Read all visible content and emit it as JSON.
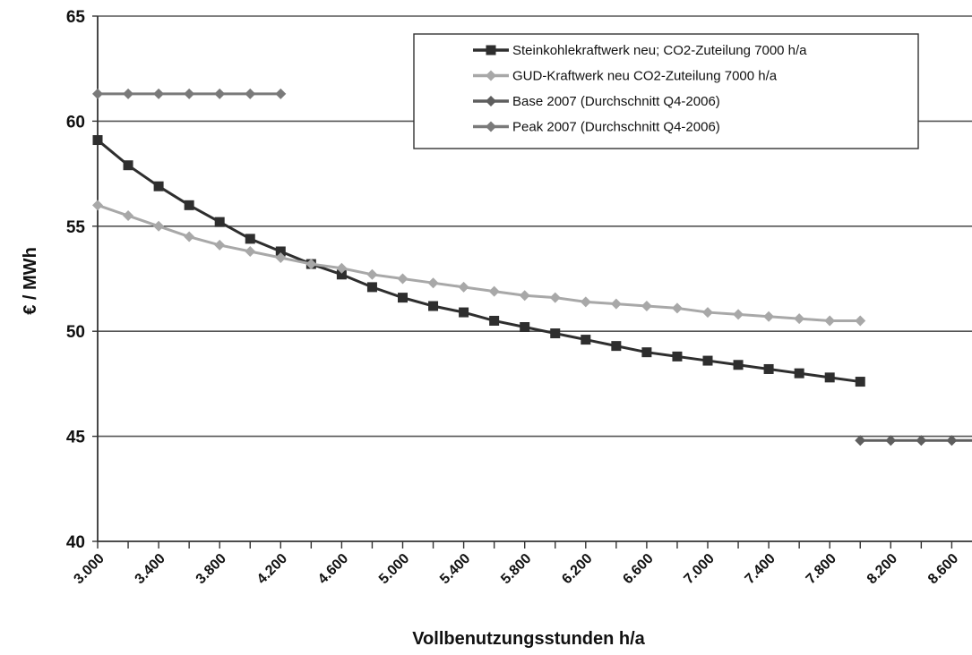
{
  "chart_data": {
    "type": "line",
    "title": "",
    "xlabel": "Vollbenutzungsstunden h/a",
    "ylabel": "€ / MWh",
    "xlim": [
      3000,
      8800
    ],
    "ylim": [
      40,
      65
    ],
    "y_ticks": [
      40,
      45,
      50,
      55,
      60,
      65
    ],
    "x_tick_values": [
      3000,
      3400,
      3800,
      4200,
      4600,
      5000,
      5400,
      5800,
      6200,
      6600,
      7000,
      7400,
      7800,
      8200,
      8600
    ],
    "x_tick_labels": [
      "3.000",
      "3.400",
      "3.800",
      "4.200",
      "4.600",
      "5.000",
      "5.400",
      "5.800",
      "6.200",
      "6.600",
      "7.000",
      "7.400",
      "7.800",
      "8.200",
      "8.600"
    ],
    "grid": true,
    "legend_position": "top-right",
    "series": [
      {
        "name": "Steinkohlekraftwerk neu; CO2-Zuteilung 7000 h/a",
        "color": "#2e2e2e",
        "marker": "square",
        "x": [
          3000,
          3200,
          3400,
          3600,
          3800,
          4000,
          4200,
          4400,
          4600,
          4800,
          5000,
          5200,
          5400,
          5600,
          5800,
          6000,
          6200,
          6400,
          6600,
          6800,
          7000,
          7200,
          7400,
          7600,
          7800,
          8000
        ],
        "values": [
          59.1,
          57.9,
          56.9,
          56.0,
          55.2,
          54.4,
          53.8,
          53.2,
          52.7,
          52.1,
          51.6,
          51.2,
          50.9,
          50.5,
          50.2,
          49.9,
          49.6,
          49.3,
          49.0,
          48.8,
          48.6,
          48.4,
          48.2,
          48.0,
          47.8,
          47.6
        ]
      },
      {
        "name": "GUD-Kraftwerk neu CO2-Zuteilung 7000 h/a",
        "color": "#a8a8a8",
        "marker": "diamond",
        "x": [
          3000,
          3200,
          3400,
          3600,
          3800,
          4000,
          4200,
          4400,
          4600,
          4800,
          5000,
          5200,
          5400,
          5600,
          5800,
          6000,
          6200,
          6400,
          6600,
          6800,
          7000,
          7200,
          7400,
          7600,
          7800,
          8000
        ],
        "values": [
          56.0,
          55.5,
          55.0,
          54.5,
          54.1,
          53.8,
          53.5,
          53.2,
          53.0,
          52.7,
          52.5,
          52.3,
          52.1,
          51.9,
          51.7,
          51.6,
          51.4,
          51.3,
          51.2,
          51.1,
          50.9,
          50.8,
          50.7,
          50.6,
          50.5,
          50.5
        ]
      },
      {
        "name": "Base 2007 (Durchschnitt Q4-2006)",
        "color": "#5e5e5e",
        "marker": "diamond",
        "x": [
          8000,
          8200,
          8400,
          8600,
          8800
        ],
        "values": [
          44.8,
          44.8,
          44.8,
          44.8,
          44.8
        ]
      },
      {
        "name": "Peak 2007 (Durchschnitt Q4-2006)",
        "color": "#7a7a7a",
        "marker": "diamond",
        "x": [
          3000,
          3200,
          3400,
          3600,
          3800,
          4000,
          4200
        ],
        "values": [
          61.3,
          61.3,
          61.3,
          61.3,
          61.3,
          61.3,
          61.3
        ]
      }
    ]
  }
}
